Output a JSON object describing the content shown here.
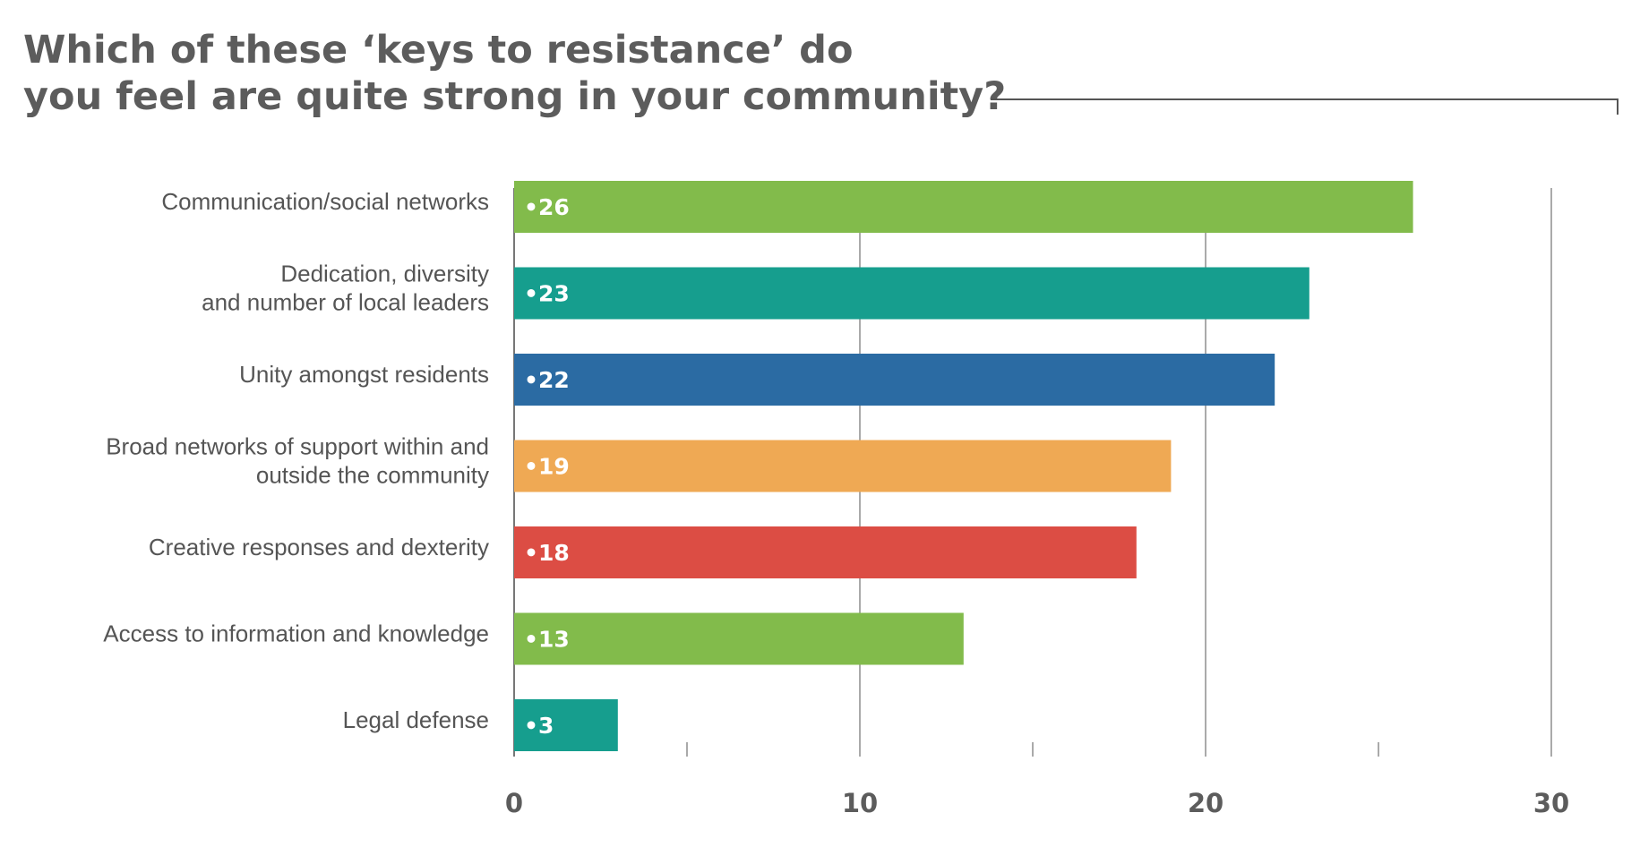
{
  "title_lines": [
    "Which of these ‘keys to resistance’ do",
    "you feel are quite strong in your community?"
  ],
  "chart_data": {
    "type": "bar",
    "orientation": "horizontal",
    "title": "Which of these ‘keys to resistance’ do you feel are quite strong in your community?",
    "xlabel": "",
    "ylabel": "",
    "xlim": [
      0,
      30
    ],
    "x_ticks": [
      0,
      10,
      20,
      30
    ],
    "grid": true,
    "categories": [
      [
        "Communication/social networks"
      ],
      [
        "Dedication, diversity",
        "and number of local leaders"
      ],
      [
        "Unity amongst residents"
      ],
      [
        "Broad networks of support within and",
        "outside the community"
      ],
      [
        "Creative responses and dexterity"
      ],
      [
        "Access to information and knowledge"
      ],
      [
        "Legal defense"
      ]
    ],
    "values": [
      26,
      23,
      22,
      19,
      18,
      13,
      3
    ],
    "value_labels": [
      "•26",
      "•23",
      "•22",
      "•19",
      "•18",
      "•13",
      "•3"
    ],
    "colors": [
      "#82bb4b",
      "#169e8e",
      "#2b6ba3",
      "#efa954",
      "#dc4d44",
      "#82bb4b",
      "#169e8e"
    ],
    "gridline_color": "#aaaaaa",
    "axis_color": "#777777"
  }
}
